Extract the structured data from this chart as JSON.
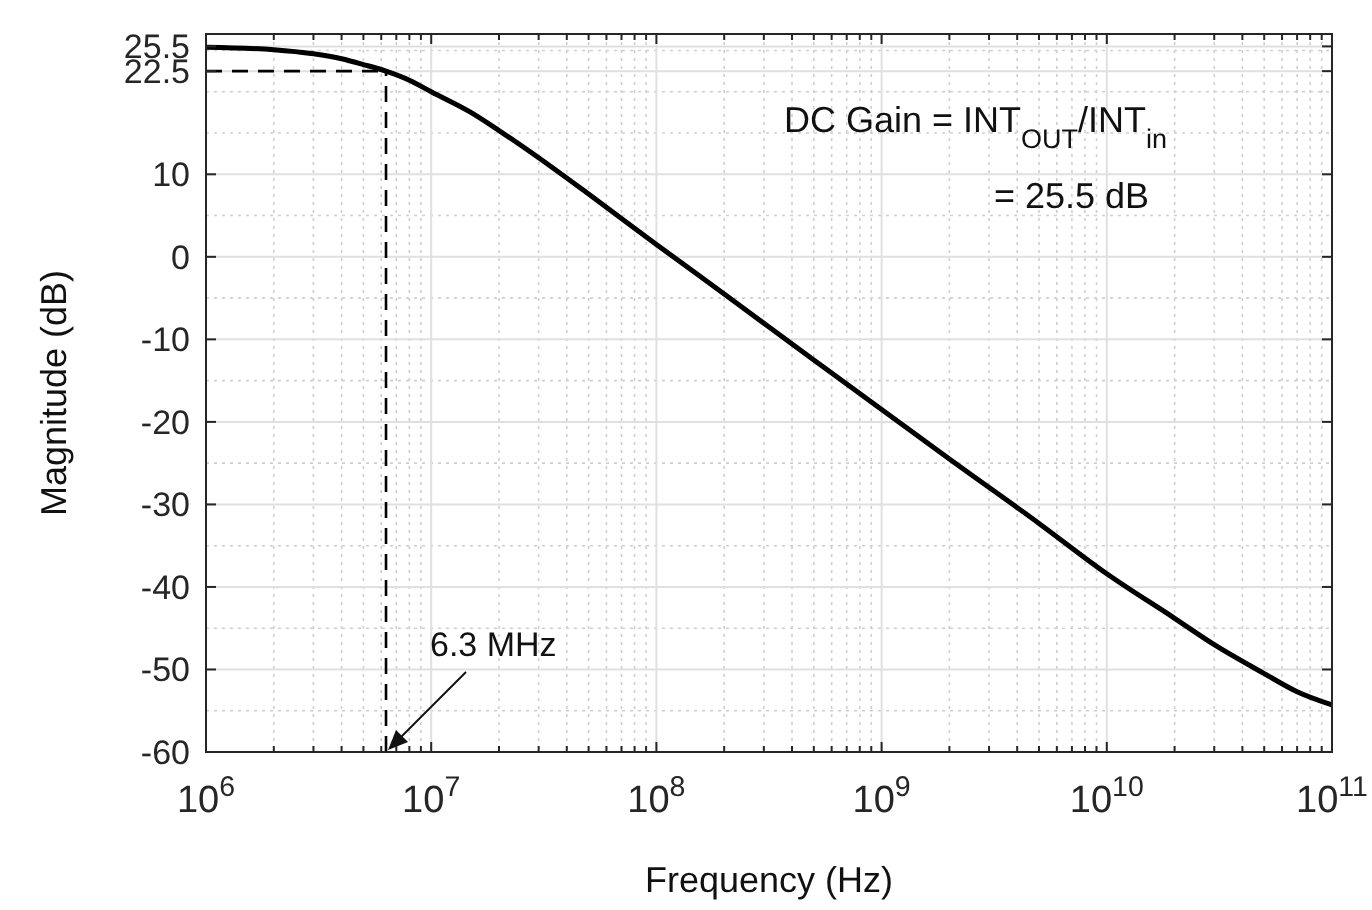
{
  "chart_data": {
    "type": "line",
    "xlabel": "Frequency (Hz)",
    "ylabel": "Magnitude (dB)",
    "log": "x",
    "x": [
      1000000,
      2000000,
      3000000,
      4000000,
      5000000,
      6300000,
      8000000,
      10000000,
      15000000,
      20000000,
      30000000,
      50000000,
      100000000,
      200000000,
      500000000,
      1000000000,
      2000000000,
      5000000000,
      10000000000,
      20000000000,
      30000000000,
      50000000000,
      70000000000,
      100000000000
    ],
    "series": [
      {
        "color": "#000000",
        "values": [
          25.4,
          25.1,
          24.6,
          24.0,
          23.3,
          22.5,
          21.4,
          20.0,
          17.5,
          15.3,
          12.0,
          7.6,
          1.5,
          -4.5,
          -12.5,
          -18.5,
          -24.5,
          -32.3,
          -38.4,
          -43.8,
          -47.0,
          -50.5,
          -52.7,
          -54.3
        ]
      }
    ],
    "xlim": [
      1000000,
      100000000000
    ],
    "xticks": [
      {
        "value": 1000000,
        "label": "10$^{6}$"
      },
      {
        "value": 10000000,
        "label": "10$^{7}$"
      },
      {
        "value": 100000000,
        "label": "10$^{8}$"
      },
      {
        "value": 1000000000,
        "label": "10$^{9}$"
      },
      {
        "value": 10000000000,
        "label": "10$^{10}$"
      },
      {
        "value": 100000000000,
        "label": "10$^{11}$"
      }
    ],
    "ylim": [
      -60,
      27
    ],
    "yticks": [
      -60,
      -50,
      -40,
      -30,
      -20,
      -10,
      0,
      10,
      22.5,
      25.5
    ],
    "grid": true,
    "marker": "none",
    "line_style": "solid",
    "ref_lines": [
      {
        "axis": "x",
        "value": 6300000,
        "line_style": "dashed",
        "color": "#000000"
      },
      {
        "axis": "y",
        "value": 22.5,
        "line_style": "dashed",
        "color": "#000000"
      }
    ],
    "annotations": [
      "DC Gain = INT$_{OUT}$/INT$_{in}$",
      "= 25.5 dB",
      "6.3 MHz"
    ]
  }
}
